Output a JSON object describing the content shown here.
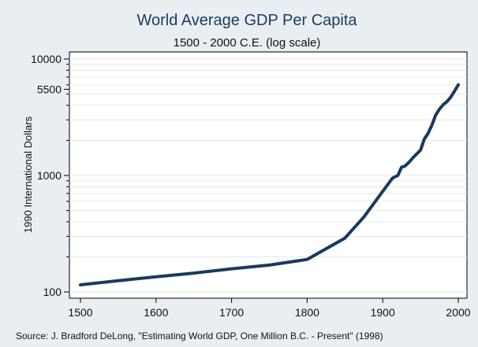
{
  "chart_data": {
    "type": "line",
    "title": "World Average GDP Per Capita",
    "subtitle": "1500 - 2000 C.E. (log scale)",
    "ylabel": "1990 International Dollars",
    "xlabel": "",
    "source": "Source: J. Bradford DeLong, \"Estimating World GDP, One Million B.C. - Present\" (1998)",
    "yscale": "log",
    "xlim": [
      1500,
      2000
    ],
    "ylim": [
      100,
      10000
    ],
    "xticks": [
      1500,
      1600,
      1700,
      1800,
      1900,
      2000
    ],
    "yticks": [
      {
        "value": 100,
        "label": "100"
      },
      {
        "value": 1000,
        "label": "1000"
      },
      {
        "value": 5500,
        "label": "5500"
      },
      {
        "value": 10000,
        "label": "10000"
      }
    ],
    "grid": "horizontal",
    "line_color": "#1b3a5c",
    "series": [
      {
        "x": [
          1500,
          1550,
          1600,
          1650,
          1700,
          1750,
          1800,
          1850,
          1875,
          1900,
          1913,
          1920,
          1925,
          1929,
          1935,
          1940,
          1950,
          1955,
          1960,
          1965,
          1970,
          1975,
          1980,
          1985,
          1990,
          1995,
          2000
        ],
        "y": [
          115,
          125,
          135,
          145,
          158,
          170,
          190,
          290,
          440,
          730,
          950,
          1000,
          1180,
          1200,
          1300,
          1420,
          1650,
          2050,
          2300,
          2700,
          3300,
          3700,
          4050,
          4300,
          4700,
          5300,
          6000
        ]
      }
    ]
  }
}
